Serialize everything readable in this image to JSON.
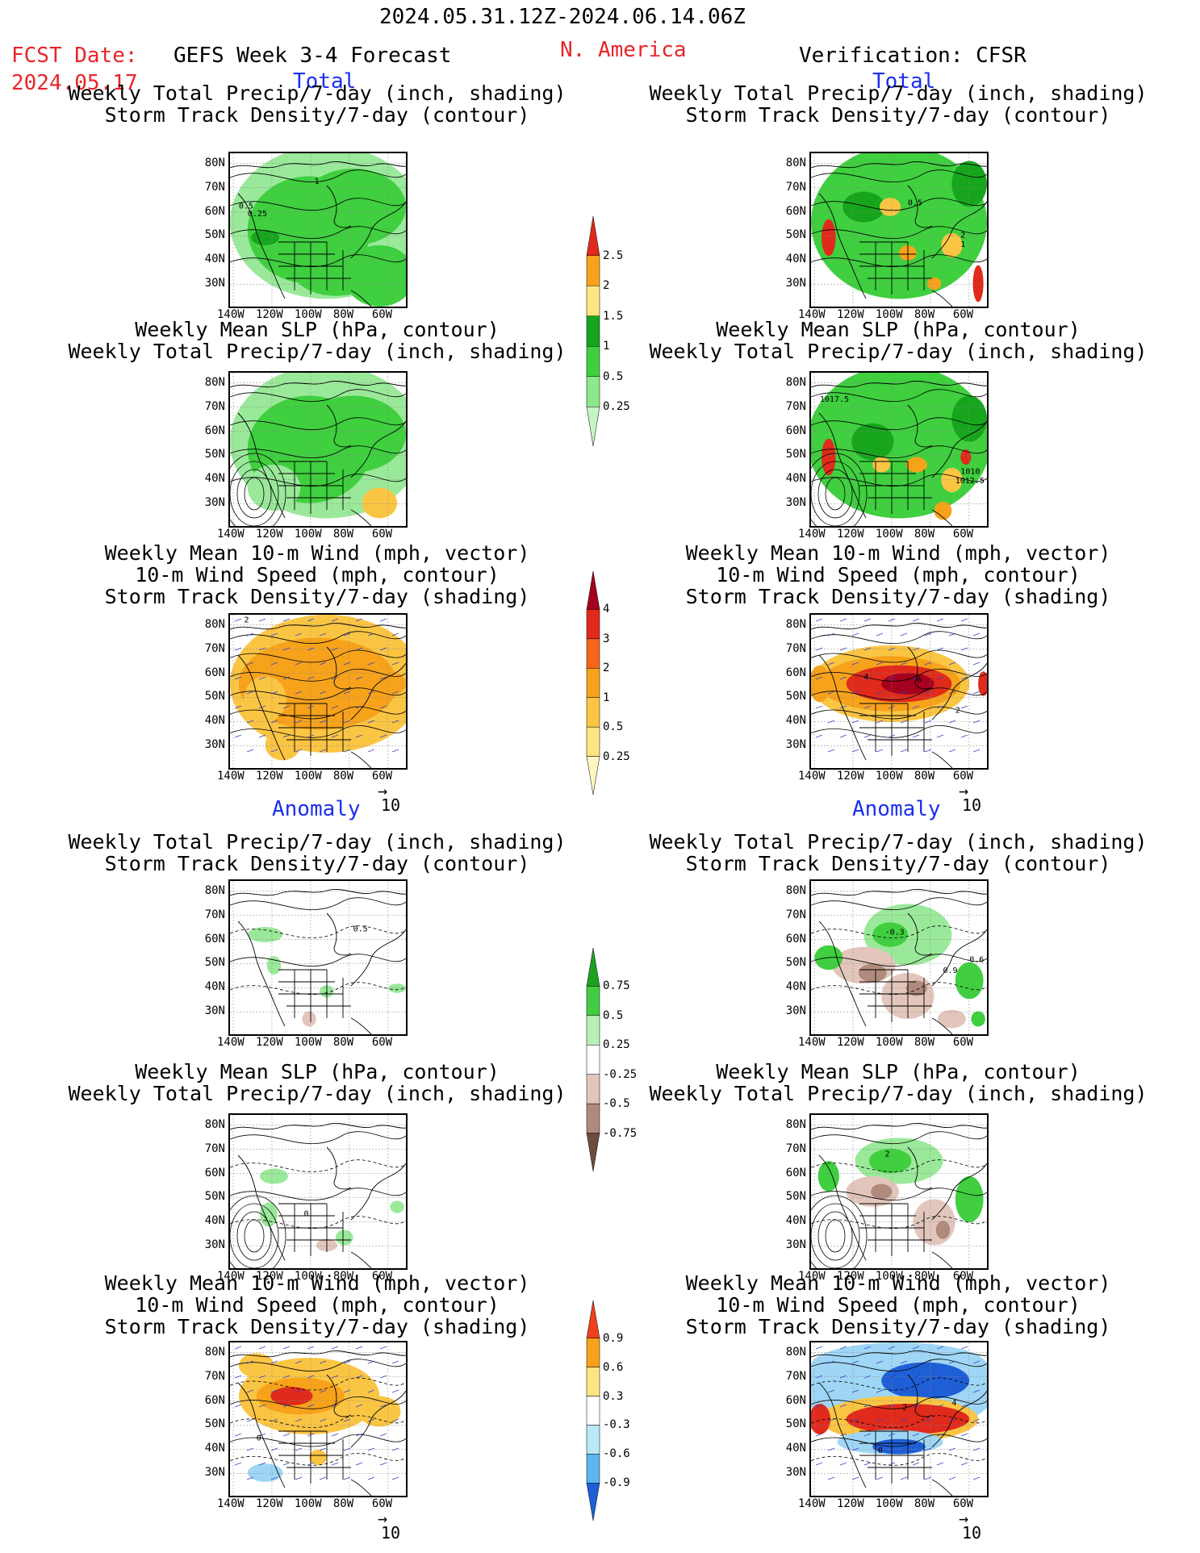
{
  "header": {
    "period": "2024.05.31.12Z-2024.06.14.06Z",
    "fcst_label": "FCST Date:",
    "fcst_date": "2024.05.17",
    "model": "GEFS Week 3-4 Forecast",
    "region": "N. America",
    "verification": "Verification: CFSR"
  },
  "sections": {
    "total": "Total",
    "anomaly": "Anomaly"
  },
  "panel_titles": {
    "precip_storm": [
      "Weekly Total Precip/7-day (inch, shading)",
      "Storm Track Density/7-day (contour)"
    ],
    "slp_precip": [
      "Weekly Mean SLP (hPa, contour)",
      "Weekly Total Precip/7-day (inch, shading)"
    ],
    "wind_storm": [
      "Weekly Mean 10-m Wind (mph, vector)",
      "10-m Wind Speed (mph, contour)",
      "Storm Track Density/7-day (shading)"
    ]
  },
  "axes": {
    "lat_ticks": [
      "80N",
      "70N",
      "60N",
      "50N",
      "40N",
      "30N"
    ],
    "lon_ticks": [
      "140W",
      "120W",
      "100W",
      "80W",
      "60W"
    ]
  },
  "vector_scale": "10",
  "colorbars": {
    "total_precip": {
      "labels": [
        "2.5",
        "2",
        "1.5",
        "1",
        "0.5",
        "0.25"
      ],
      "colors": [
        "#e02a1c",
        "#f7a21b",
        "#fde680",
        "#16a51c",
        "#3fcf3f",
        "#8ce88c",
        "#c6f5c4"
      ]
    },
    "total_storm": {
      "labels": [
        "4",
        "3",
        "2",
        "1",
        "0.5",
        "0.25"
      ],
      "colors": [
        "#a5001e",
        "#e2281c",
        "#f5651b",
        "#f7a21b",
        "#fbc544",
        "#fde680",
        "#fff6c1"
      ]
    },
    "anom_precip": {
      "labels": [
        "0.75",
        "0.5",
        "0.25",
        "-0.25",
        "-0.5",
        "-0.75"
      ],
      "colors": [
        "#1aa120",
        "#44cc44",
        "#b7f0b4",
        "#ffffff",
        "#e2c6bc",
        "#b08a7c",
        "#6e4b3f"
      ]
    },
    "anom_storm": {
      "labels": [
        "0.9",
        "0.6",
        "0.3",
        "-0.3",
        "-0.6",
        "-0.9"
      ],
      "colors": [
        "#f0401c",
        "#f7a21b",
        "#fde680",
        "#ffffff",
        "#b9e8f7",
        "#5bb6f2",
        "#1f5fd6"
      ]
    }
  },
  "contour_labels": {
    "p1": [
      "1",
      "0.5",
      "0.25"
    ],
    "p2": [
      "0.5",
      "2",
      "1"
    ],
    "p4": [
      "1017.5",
      "1010",
      "1012.5"
    ],
    "p5": [
      "2"
    ],
    "p6": [
      "4",
      "6",
      "2"
    ],
    "p7": [
      "0.5"
    ],
    "p8": [
      "-0.3",
      "0.6",
      "0.9"
    ],
    "p9": [
      "0"
    ],
    "p10": [
      "2"
    ],
    "p11": [
      "0"
    ],
    "p12": [
      "2",
      "4",
      "0"
    ]
  },
  "map_colors": {
    "green": "#3fcf3f",
    "light_green": "#9ae99a",
    "dark_green": "#16a51c",
    "orange": "#f7a21b",
    "light_orange": "#fbc544",
    "red": "#e02a1c",
    "dark_red": "#a5001e",
    "brown": "#b08a7c",
    "light_brown": "#e2c6bc",
    "blue": "#1f5fd6",
    "light_blue": "#9fd6f5",
    "vector": "#3340c8"
  }
}
